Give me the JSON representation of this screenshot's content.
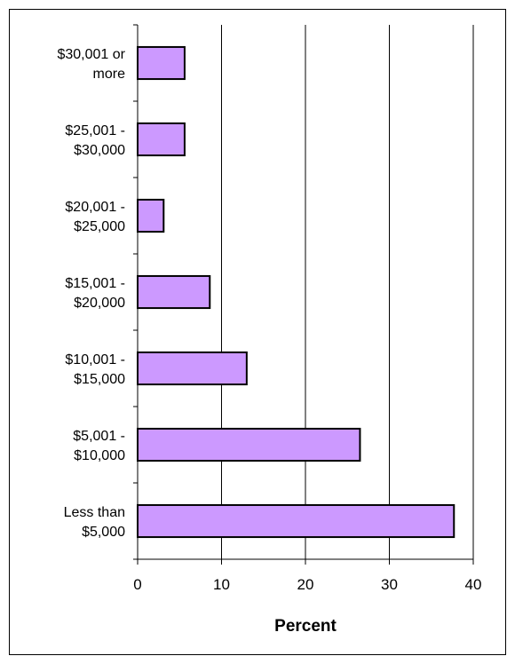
{
  "chart_data": {
    "type": "bar",
    "orientation": "horizontal",
    "categories": [
      [
        "$30,001 or",
        "more"
      ],
      [
        "$25,001 -",
        "$30,000"
      ],
      [
        "$20,001 -",
        "$25,000"
      ],
      [
        "$15,001 -",
        "$20,000"
      ],
      [
        "$10,001 -",
        "$15,000"
      ],
      [
        "$5,001 -",
        "$10,000"
      ],
      [
        "Less than",
        "$5,000"
      ]
    ],
    "values": [
      5.6,
      5.6,
      3.1,
      8.6,
      13.0,
      26.5,
      37.7
    ],
    "xlabel": "Percent",
    "xlim": [
      0,
      40
    ],
    "xticks": [
      0,
      10,
      20,
      30,
      40
    ],
    "grid": "vertical",
    "bar_color": "#cc99ff",
    "bar_edge_color": "#000000"
  }
}
